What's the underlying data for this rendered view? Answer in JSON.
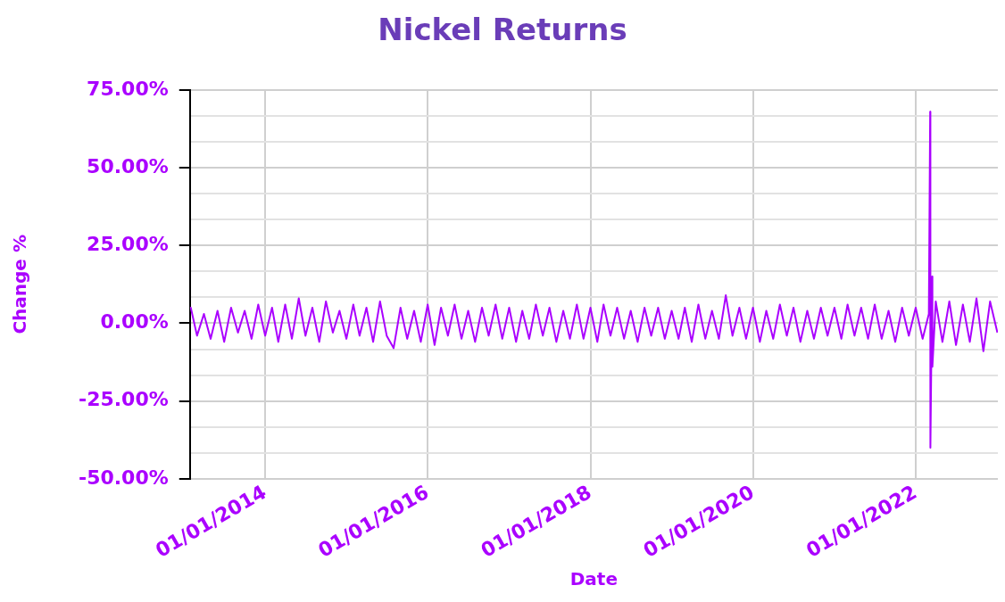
{
  "chart_data": {
    "type": "line",
    "title": "Nickel Returns",
    "xlabel": "Date",
    "ylabel": "Change %",
    "xlim": [
      "2013-01-28",
      "2023-01-05"
    ],
    "xticks": [
      {
        "value": "2014-01-01",
        "label": "01/01/2014"
      },
      {
        "value": "2016-01-01",
        "label": "01/01/2016"
      },
      {
        "value": "2018-01-01",
        "label": "01/01/2018"
      },
      {
        "value": "2020-01-01",
        "label": "01/01/2020"
      },
      {
        "value": "2022-01-01",
        "label": "01/01/2022"
      }
    ],
    "ylim": [
      -50,
      75
    ],
    "yticks": [
      {
        "value": -50,
        "label": "-50.00%"
      },
      {
        "value": -41.67,
        "label": null
      },
      {
        "value": -33.33,
        "label": null
      },
      {
        "value": -25,
        "label": "-25.00%"
      },
      {
        "value": -16.67,
        "label": null
      },
      {
        "value": -8.33,
        "label": null
      },
      {
        "value": 0,
        "label": "0.00%"
      },
      {
        "value": 8.33,
        "label": null
      },
      {
        "value": 16.67,
        "label": null
      },
      {
        "value": 25,
        "label": "25.00%"
      },
      {
        "value": 33.33,
        "label": null
      },
      {
        "value": 41.67,
        "label": null
      },
      {
        "value": 50,
        "label": "50.00%"
      },
      {
        "value": 58.33,
        "label": null
      },
      {
        "value": 66.67,
        "label": null
      },
      {
        "value": 75,
        "label": "75.00%"
      }
    ],
    "grid": true,
    "legend": false,
    "marker": "none",
    "line_style": "solid",
    "series": [
      {
        "color": "#aa00ff",
        "x": [
          "2013-01-28",
          "2013-02",
          "2013-03",
          "2013-04",
          "2013-05",
          "2013-06",
          "2013-07",
          "2013-08",
          "2013-09",
          "2013-10",
          "2013-11",
          "2013-12",
          "2014-01",
          "2014-02",
          "2014-03",
          "2014-04",
          "2014-05",
          "2014-06",
          "2014-07",
          "2014-08",
          "2014-09",
          "2014-10",
          "2014-11",
          "2014-12",
          "2015-01",
          "2015-02",
          "2015-03",
          "2015-04",
          "2015-05",
          "2015-06",
          "2015-07",
          "2015-08",
          "2015-09",
          "2015-10",
          "2015-11",
          "2015-12",
          "2016-01",
          "2016-02",
          "2016-03",
          "2016-04",
          "2016-05",
          "2016-06",
          "2016-07",
          "2016-08",
          "2016-09",
          "2016-10",
          "2016-11",
          "2016-12",
          "2017-01",
          "2017-02",
          "2017-03",
          "2017-04",
          "2017-05",
          "2017-06",
          "2017-07",
          "2017-08",
          "2017-09",
          "2017-10",
          "2017-11",
          "2017-12",
          "2018-01",
          "2018-02",
          "2018-03",
          "2018-04",
          "2018-05",
          "2018-06",
          "2018-07",
          "2018-08",
          "2018-09",
          "2018-10",
          "2018-11",
          "2018-12",
          "2019-01",
          "2019-02",
          "2019-03",
          "2019-04",
          "2019-05",
          "2019-06",
          "2019-07",
          "2019-08",
          "2019-09",
          "2019-10",
          "2019-11",
          "2019-12",
          "2020-01",
          "2020-02",
          "2020-03",
          "2020-04",
          "2020-05",
          "2020-06",
          "2020-07",
          "2020-08",
          "2020-09",
          "2020-10",
          "2020-11",
          "2020-12",
          "2021-01",
          "2021-02",
          "2021-03",
          "2021-04",
          "2021-05",
          "2021-06",
          "2021-07",
          "2021-08",
          "2021-09",
          "2021-10",
          "2021-11",
          "2021-12",
          "2022-01",
          "2022-02",
          "2022-03-01",
          "2022-03-07",
          "2022-03-08",
          "2022-03-16",
          "2022-03-17",
          "2022-04",
          "2022-05",
          "2022-06",
          "2022-07",
          "2022-08",
          "2022-09",
          "2022-10",
          "2022-11",
          "2022-12",
          "2023-01-03"
        ],
        "values": [
          5,
          5,
          -4,
          3,
          -5,
          4,
          -6,
          5,
          -3,
          4,
          -5,
          6,
          -4,
          5,
          -6,
          6,
          -5,
          8,
          -4,
          5,
          -6,
          7,
          -3,
          4,
          -5,
          6,
          -4,
          5,
          -6,
          7,
          -4,
          -8,
          5,
          -5,
          4,
          -6,
          6,
          -7,
          5,
          -4,
          6,
          -5,
          4,
          -6,
          5,
          -4,
          6,
          -5,
          5,
          -6,
          4,
          -5,
          6,
          -4,
          5,
          -6,
          4,
          -5,
          6,
          -5,
          5,
          -6,
          6,
          -4,
          5,
          -5,
          4,
          -6,
          5,
          -4,
          5,
          -5,
          4,
          -5,
          5,
          -6,
          6,
          -5,
          4,
          -5,
          9,
          -4,
          5,
          -5,
          5,
          -6,
          4,
          -5,
          6,
          -4,
          5,
          -6,
          4,
          -5,
          5,
          -4,
          5,
          -5,
          6,
          -4,
          5,
          -5,
          6,
          -5,
          4,
          -6,
          5,
          -4,
          5,
          -5,
          3,
          68,
          -40,
          15,
          -14,
          7,
          -6,
          7,
          -7,
          6,
          -6,
          8,
          -9,
          7,
          -3
        ]
      }
    ]
  }
}
